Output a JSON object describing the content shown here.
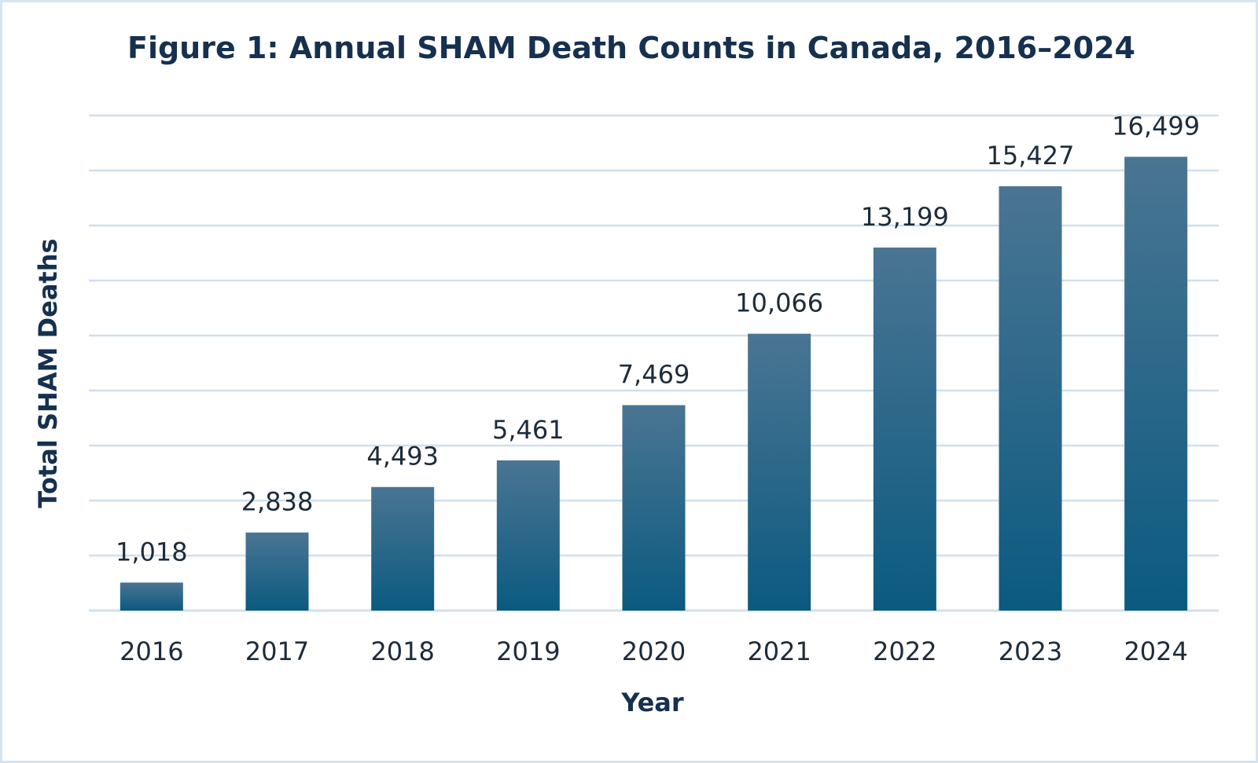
{
  "chart_data": {
    "type": "bar",
    "title": "Figure 1: Annual SHAM Death Counts in Canada, 2016–2024",
    "xlabel": "Year",
    "ylabel": "Total SHAM Deaths",
    "categories": [
      "2016",
      "2017",
      "2018",
      "2019",
      "2020",
      "2021",
      "2022",
      "2023",
      "2024"
    ],
    "values": [
      1018,
      2838,
      4493,
      5461,
      7469,
      10066,
      13199,
      15427,
      16499
    ],
    "value_labels": [
      "1,018",
      "2,838",
      "4,493",
      "5,461",
      "7,469",
      "10,066",
      "13,199",
      "15,427",
      "16,499"
    ],
    "ylim": [
      0,
      18000
    ],
    "grid": true,
    "legend": "none",
    "colors": {
      "bar_top": "#4a7593",
      "bar_bottom": "#0b5a80",
      "grid": "#cfe0ee",
      "title": "#16304f"
    }
  }
}
